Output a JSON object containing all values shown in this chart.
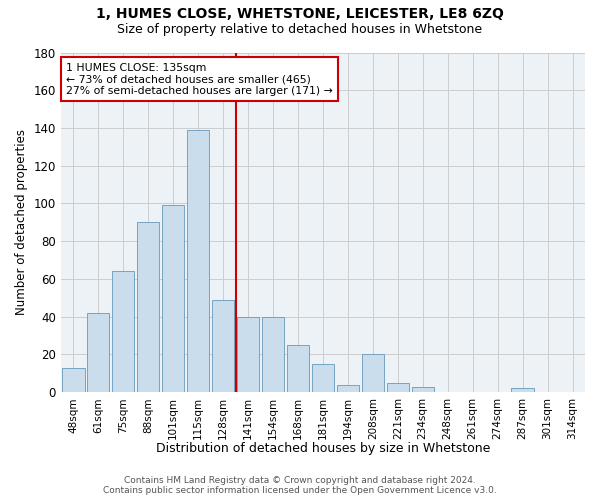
{
  "title": "1, HUMES CLOSE, WHETSTONE, LEICESTER, LE8 6ZQ",
  "subtitle": "Size of property relative to detached houses in Whetstone",
  "xlabel": "Distribution of detached houses by size in Whetstone",
  "ylabel": "Number of detached properties",
  "bar_labels": [
    "48sqm",
    "61sqm",
    "75sqm",
    "88sqm",
    "101sqm",
    "115sqm",
    "128sqm",
    "141sqm",
    "154sqm",
    "168sqm",
    "181sqm",
    "194sqm",
    "208sqm",
    "221sqm",
    "234sqm",
    "248sqm",
    "261sqm",
    "274sqm",
    "287sqm",
    "301sqm",
    "314sqm"
  ],
  "bar_values": [
    13,
    42,
    64,
    90,
    99,
    139,
    49,
    40,
    40,
    25,
    15,
    4,
    20,
    5,
    3,
    0,
    0,
    0,
    2,
    0,
    0
  ],
  "bar_color": "#c9dded",
  "bar_edge_color": "#6699bb",
  "reference_line_label": "1 HUMES CLOSE: 135sqm",
  "annotation_line1": "← 73% of detached houses are smaller (465)",
  "annotation_line2": "27% of semi-detached houses are larger (171) →",
  "ylim": [
    0,
    180
  ],
  "yticks": [
    0,
    20,
    40,
    60,
    80,
    100,
    120,
    140,
    160,
    180
  ],
  "grid_color": "#cccccc",
  "vline_color": "#cc0000",
  "footer_line1": "Contains HM Land Registry data © Crown copyright and database right 2024.",
  "footer_line2": "Contains public sector information licensed under the Open Government Licence v3.0.",
  "bg_color": "#edf2f7"
}
